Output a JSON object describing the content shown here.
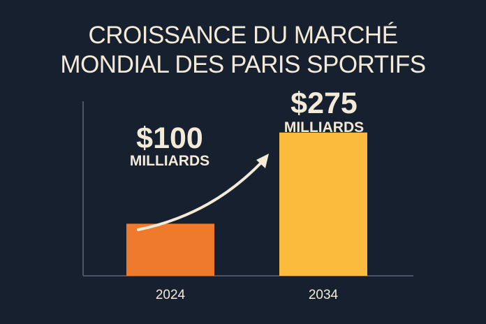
{
  "chart_data": {
    "type": "bar",
    "title_lines": [
      "CROISSANCE DU MARCHÉ",
      "MONDIAL DES PARIS SPORTIFS"
    ],
    "categories": [
      "2024",
      "2034"
    ],
    "values": [
      100,
      275
    ],
    "value_labels": [
      "$100",
      "$275"
    ],
    "unit_label": "MILLIARDS",
    "bar_colors": [
      "#f07a2c",
      "#fbbc3d"
    ],
    "ylim": [
      0,
      335
    ],
    "xlabel": "",
    "ylabel": "",
    "grid": false,
    "annotation": "upward growth arrow from 2024 bar toward 2034 bar"
  }
}
